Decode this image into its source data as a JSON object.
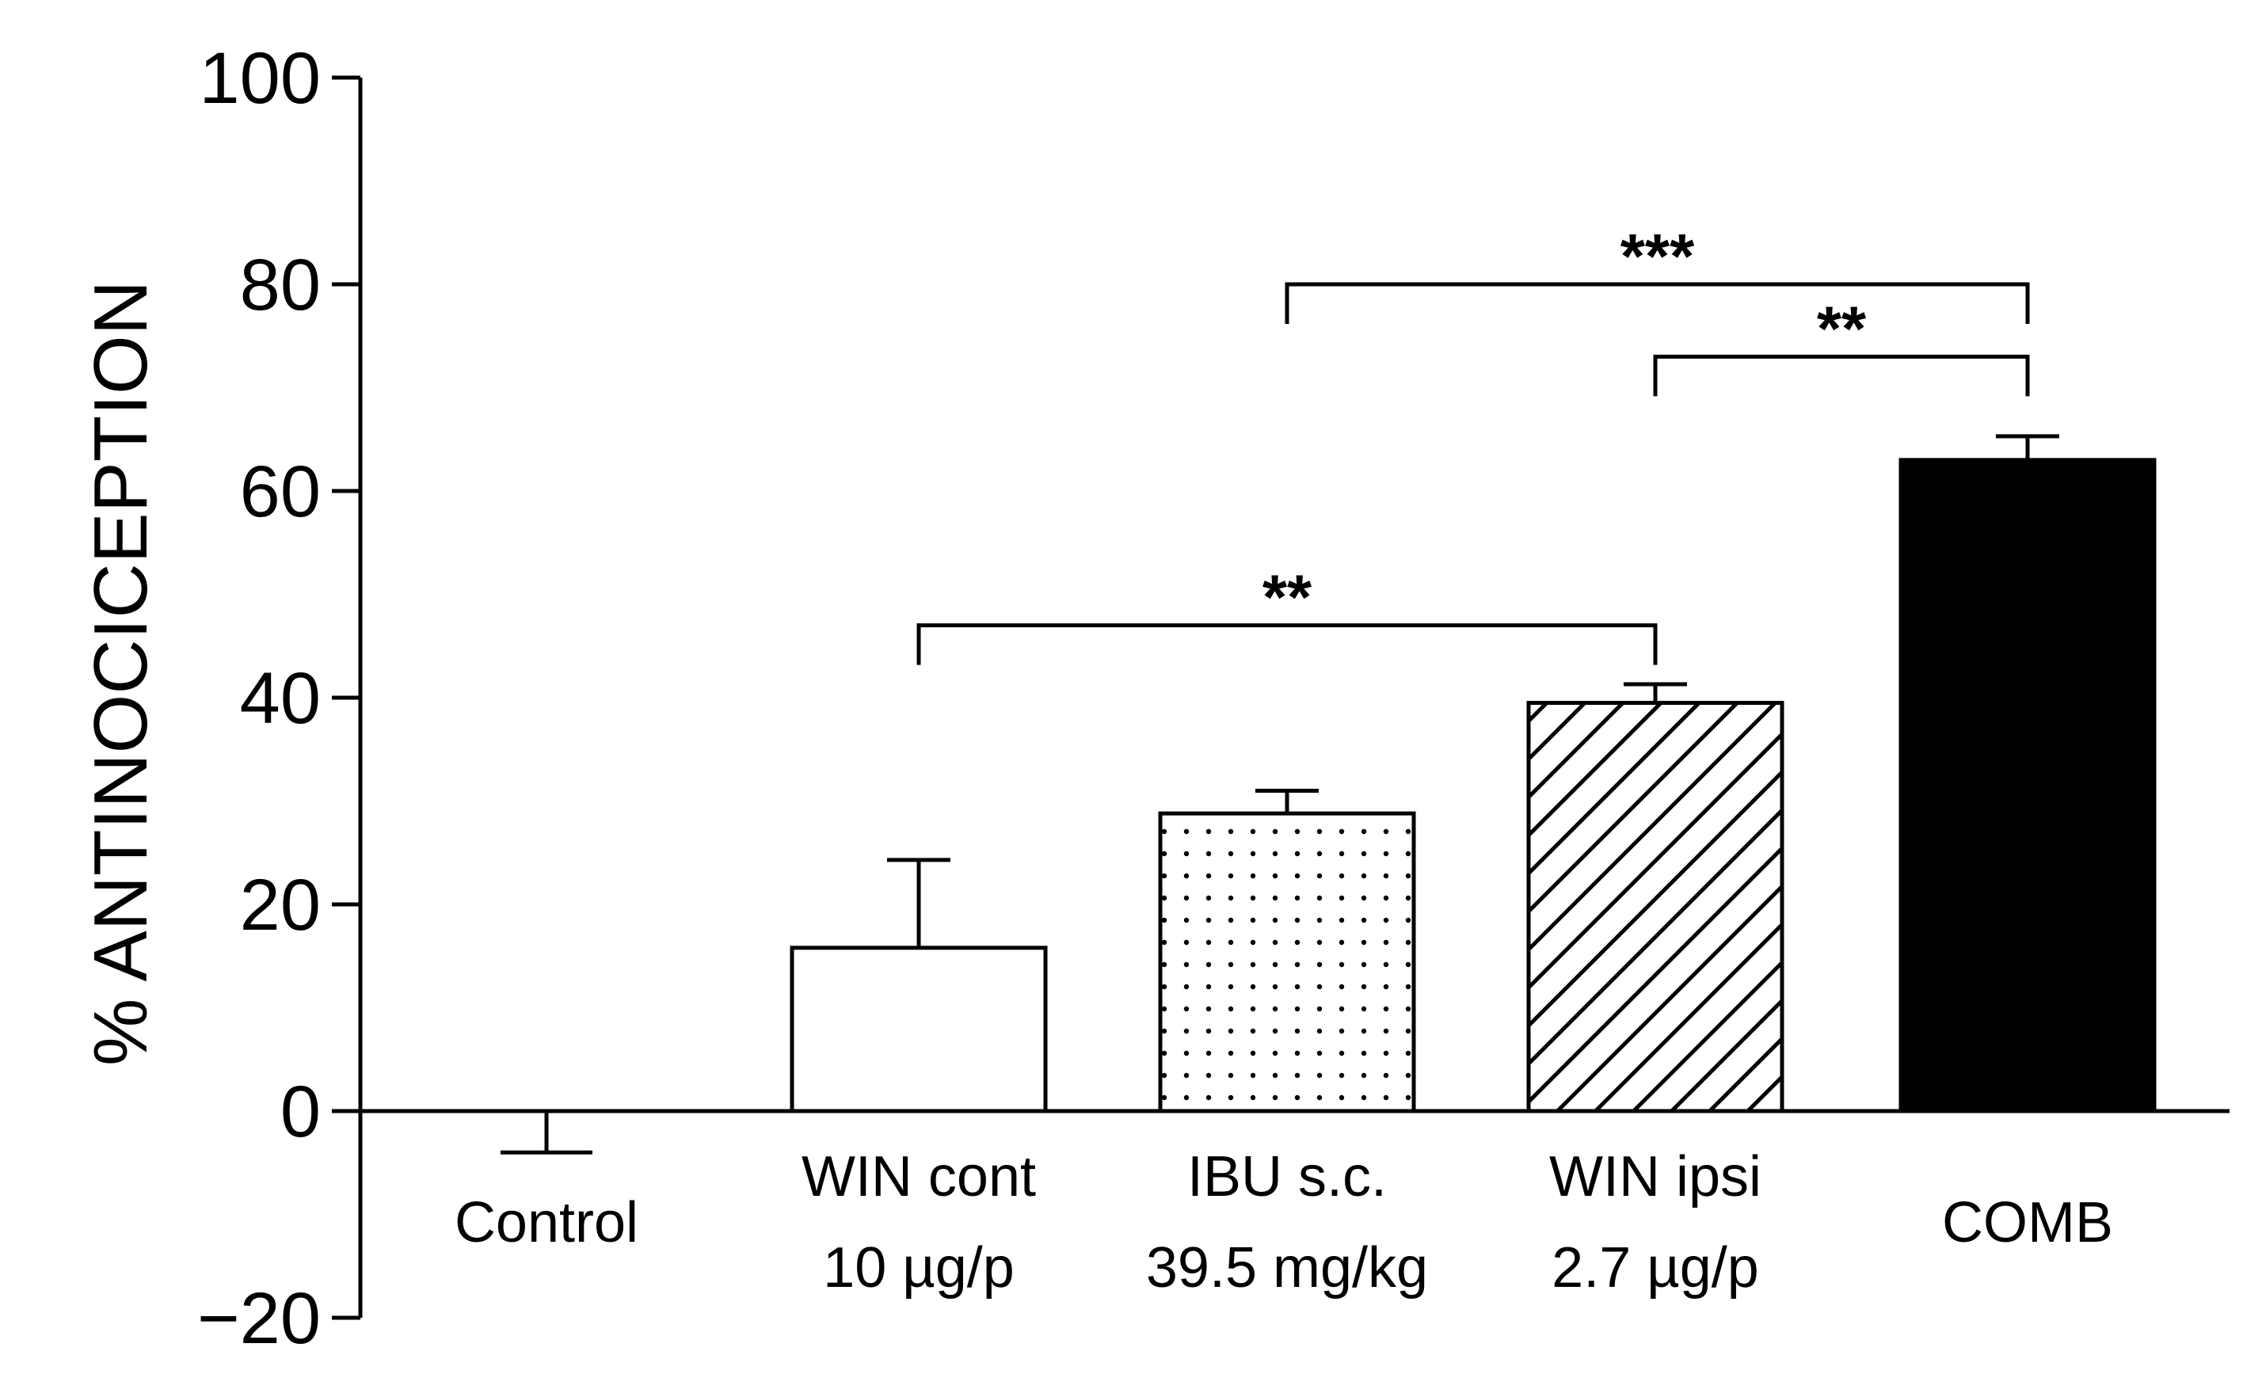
{
  "chart_data": {
    "type": "bar",
    "title": "",
    "xlabel": "",
    "ylabel": "% ANTINOCICEPTION",
    "ylim": [
      -20,
      100
    ],
    "yticks": [
      -20,
      0,
      20,
      40,
      60,
      80,
      100
    ],
    "ytick_labels": [
      "−20",
      "0",
      "20",
      "40",
      "60",
      "80",
      "100"
    ],
    "grid": false,
    "legend": "none",
    "categories": [
      {
        "line1": "Control",
        "line2": ""
      },
      {
        "line1": "WIN cont",
        "line2": "10 µg/p"
      },
      {
        "line1": "IBU s.c.",
        "line2": "39.5 mg/kg"
      },
      {
        "line1": "WIN ipsi",
        "line2": "2.7 µg/p"
      },
      {
        "line1": "COMB",
        "line2": ""
      }
    ],
    "values": [
      -4,
      15.8,
      28.8,
      39.5,
      63
    ],
    "errors": [
      4,
      8.5,
      2.2,
      1.8,
      2.3
    ],
    "fills": [
      "white",
      "white",
      "dots",
      "hatch",
      "black"
    ],
    "significance": [
      {
        "from": 1,
        "to": 3,
        "y": 47,
        "label": "**"
      },
      {
        "from": 2,
        "to": 4,
        "y": 80,
        "label": "***"
      },
      {
        "from": 3,
        "to": 4,
        "y": 73,
        "label": "**"
      }
    ]
  }
}
